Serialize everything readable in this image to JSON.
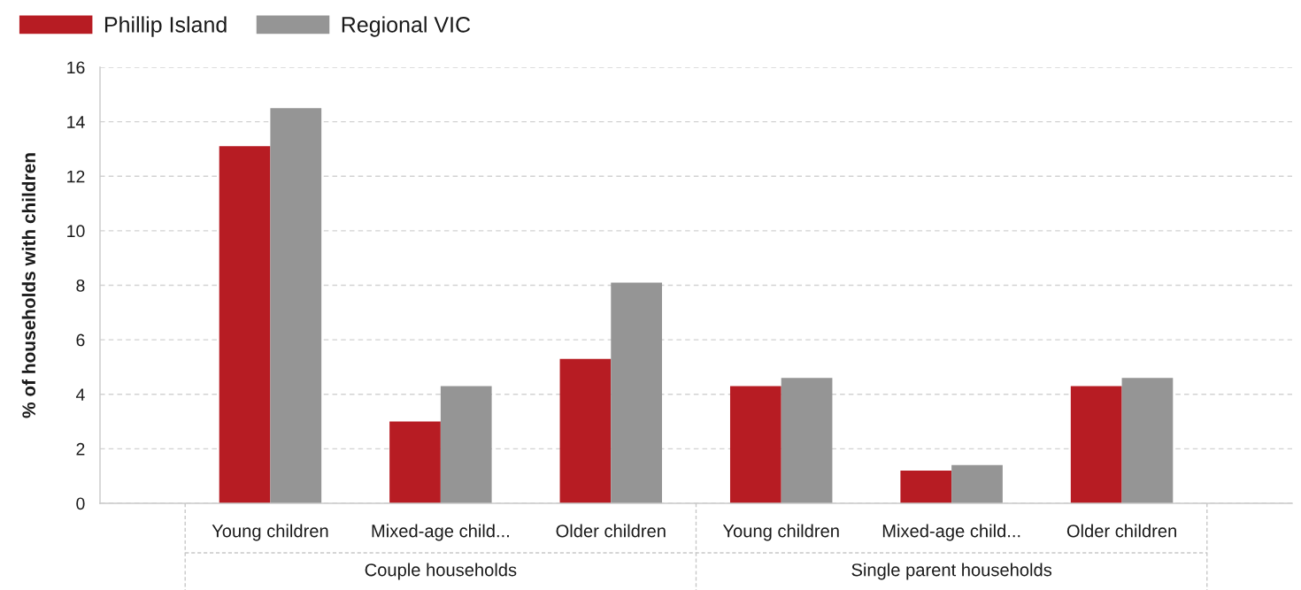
{
  "chart_data": {
    "type": "bar",
    "categories": [
      "Young children",
      "Mixed-age child...",
      "Older children",
      "Young children",
      "Mixed-age child...",
      "Older children"
    ],
    "series": [
      {
        "name": "Phillip Island",
        "color": "#b71c23",
        "values": [
          13.1,
          3.0,
          5.3,
          4.3,
          1.2,
          4.3
        ]
      },
      {
        "name": "Regional VIC",
        "color": "#959595",
        "values": [
          14.5,
          4.3,
          8.1,
          4.6,
          1.4,
          4.6
        ]
      }
    ],
    "ylabel": "% of households with children",
    "ylim": [
      0,
      16
    ],
    "yticks": [
      0,
      2,
      4,
      6,
      8,
      10,
      12,
      14,
      16
    ],
    "annotations": [
      "Couple households",
      "Single parent households"
    ],
    "grid": "y",
    "legend": "top left"
  }
}
